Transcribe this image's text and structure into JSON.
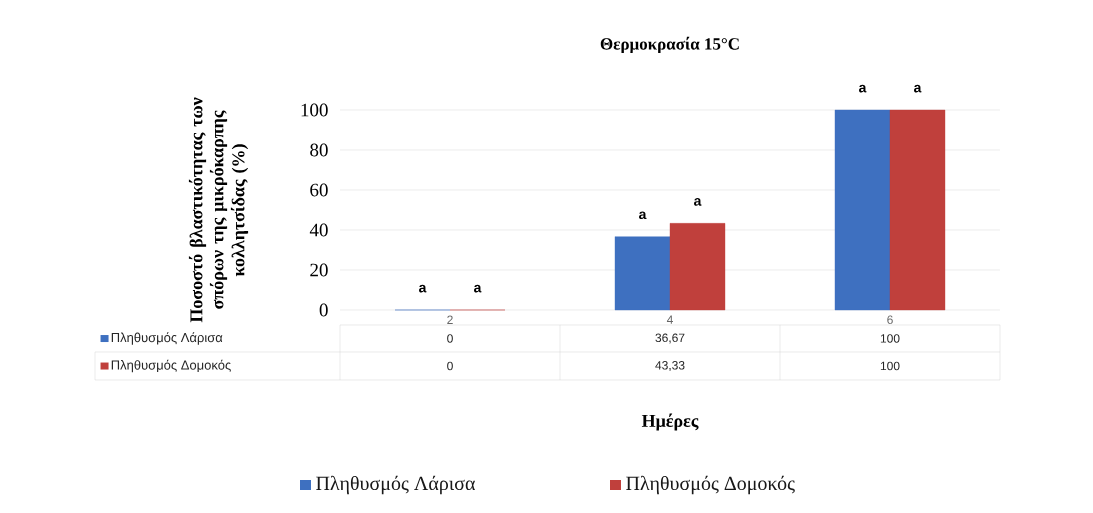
{
  "chart_data": {
    "type": "bar",
    "title": "Θερμοκρασία 15°C",
    "xlabel": "Ημέρες",
    "ylabel": "Ποσοστό βλαστικότητας των σπόρων της μικρόκαρπης κολλητσίδας (%)",
    "categories": [
      "2",
      "4",
      "6"
    ],
    "series": [
      {
        "name": "Πληθυσμός Λάρισα",
        "color": "#3e70c0",
        "values": [
          0,
          36.67,
          100
        ],
        "value_labels": [
          "0",
          "36,67",
          "100"
        ]
      },
      {
        "name": "Πληθυσμός Δομοκός",
        "color": "#c0403c",
        "values": [
          0,
          43.33,
          100
        ],
        "value_labels": [
          "0",
          "43,33",
          "100"
        ]
      }
    ],
    "ylim": [
      0,
      100
    ],
    "yticks": [
      0,
      20,
      40,
      60,
      80,
      100
    ],
    "grid": "y",
    "legend": "bottom",
    "annotations": [
      {
        "text": "a",
        "x": "2",
        "y": 0
      },
      {
        "text": "a",
        "x": "2",
        "y": 0
      },
      {
        "text": "a",
        "x": "4",
        "y": 36.67
      },
      {
        "text": "a",
        "x": "4",
        "y": 43.33
      },
      {
        "text": "a",
        "x": "6",
        "y": 100
      },
      {
        "text": "a",
        "x": "6",
        "y": 100
      }
    ]
  }
}
